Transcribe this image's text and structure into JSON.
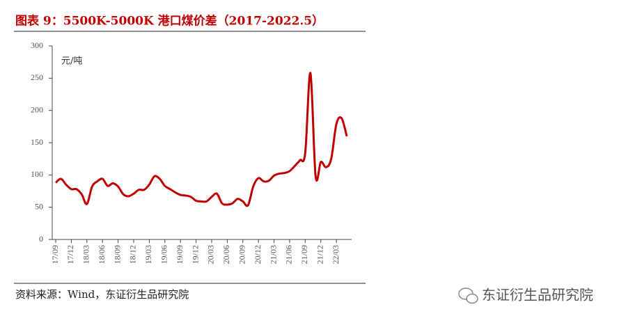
{
  "chart_data": {
    "type": "line",
    "title": "图表 9：5500K-5000K 港口煤价差（2017-2022.5）",
    "y_label": "元/吨",
    "source": "资料来源：Wind，东证衍生品研究院",
    "watermark": "东证衍生品研究院",
    "categories": [
      "17/09",
      null,
      null,
      "17/12",
      null,
      null,
      "18/03",
      null,
      null,
      "18/06",
      null,
      null,
      "18/09",
      null,
      null,
      "18/12",
      null,
      null,
      "19/03",
      null,
      null,
      "19/06",
      null,
      null,
      "19/09",
      null,
      null,
      "19/12",
      null,
      null,
      "20/03",
      null,
      null,
      "20/06",
      null,
      null,
      "20/09",
      null,
      null,
      "20/12",
      null,
      null,
      "21/03",
      null,
      null,
      "21/06",
      null,
      null,
      "21/09",
      null,
      null,
      "21/12",
      null,
      null,
      "22/03",
      null,
      null
    ],
    "series": [
      {
        "name": "5500K-5000K 港口煤价差",
        "color": "#c00000",
        "values": [
          88,
          94,
          85,
          78,
          78,
          70,
          55,
          82,
          90,
          94,
          83,
          87,
          82,
          70,
          67,
          71,
          77,
          77,
          85,
          98,
          94,
          83,
          78,
          73,
          69,
          68,
          66,
          60,
          59,
          59,
          66,
          71,
          56,
          54,
          56,
          63,
          59,
          53,
          82,
          95,
          90,
          91,
          99,
          102,
          103,
          106,
          114,
          123,
          134,
          258,
          98,
          120,
          112,
          125,
          179,
          188,
          160
        ]
      }
    ],
    "ylim": [
      0,
      300
    ],
    "yticks": [
      0,
      50,
      100,
      150,
      200,
      250,
      300
    ],
    "grid": false
  }
}
